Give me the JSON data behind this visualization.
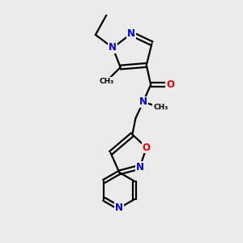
{
  "bg_color": "#ebebeb",
  "bond_color": "#000000",
  "N_color": "#0000ee",
  "O_color": "#ee0000",
  "C_color": "#000000",
  "line_width": 1.6,
  "figsize": [
    3.0,
    3.0
  ],
  "dpi": 100,
  "xlim": [
    0,
    7
  ],
  "ylim": [
    0,
    11
  ]
}
